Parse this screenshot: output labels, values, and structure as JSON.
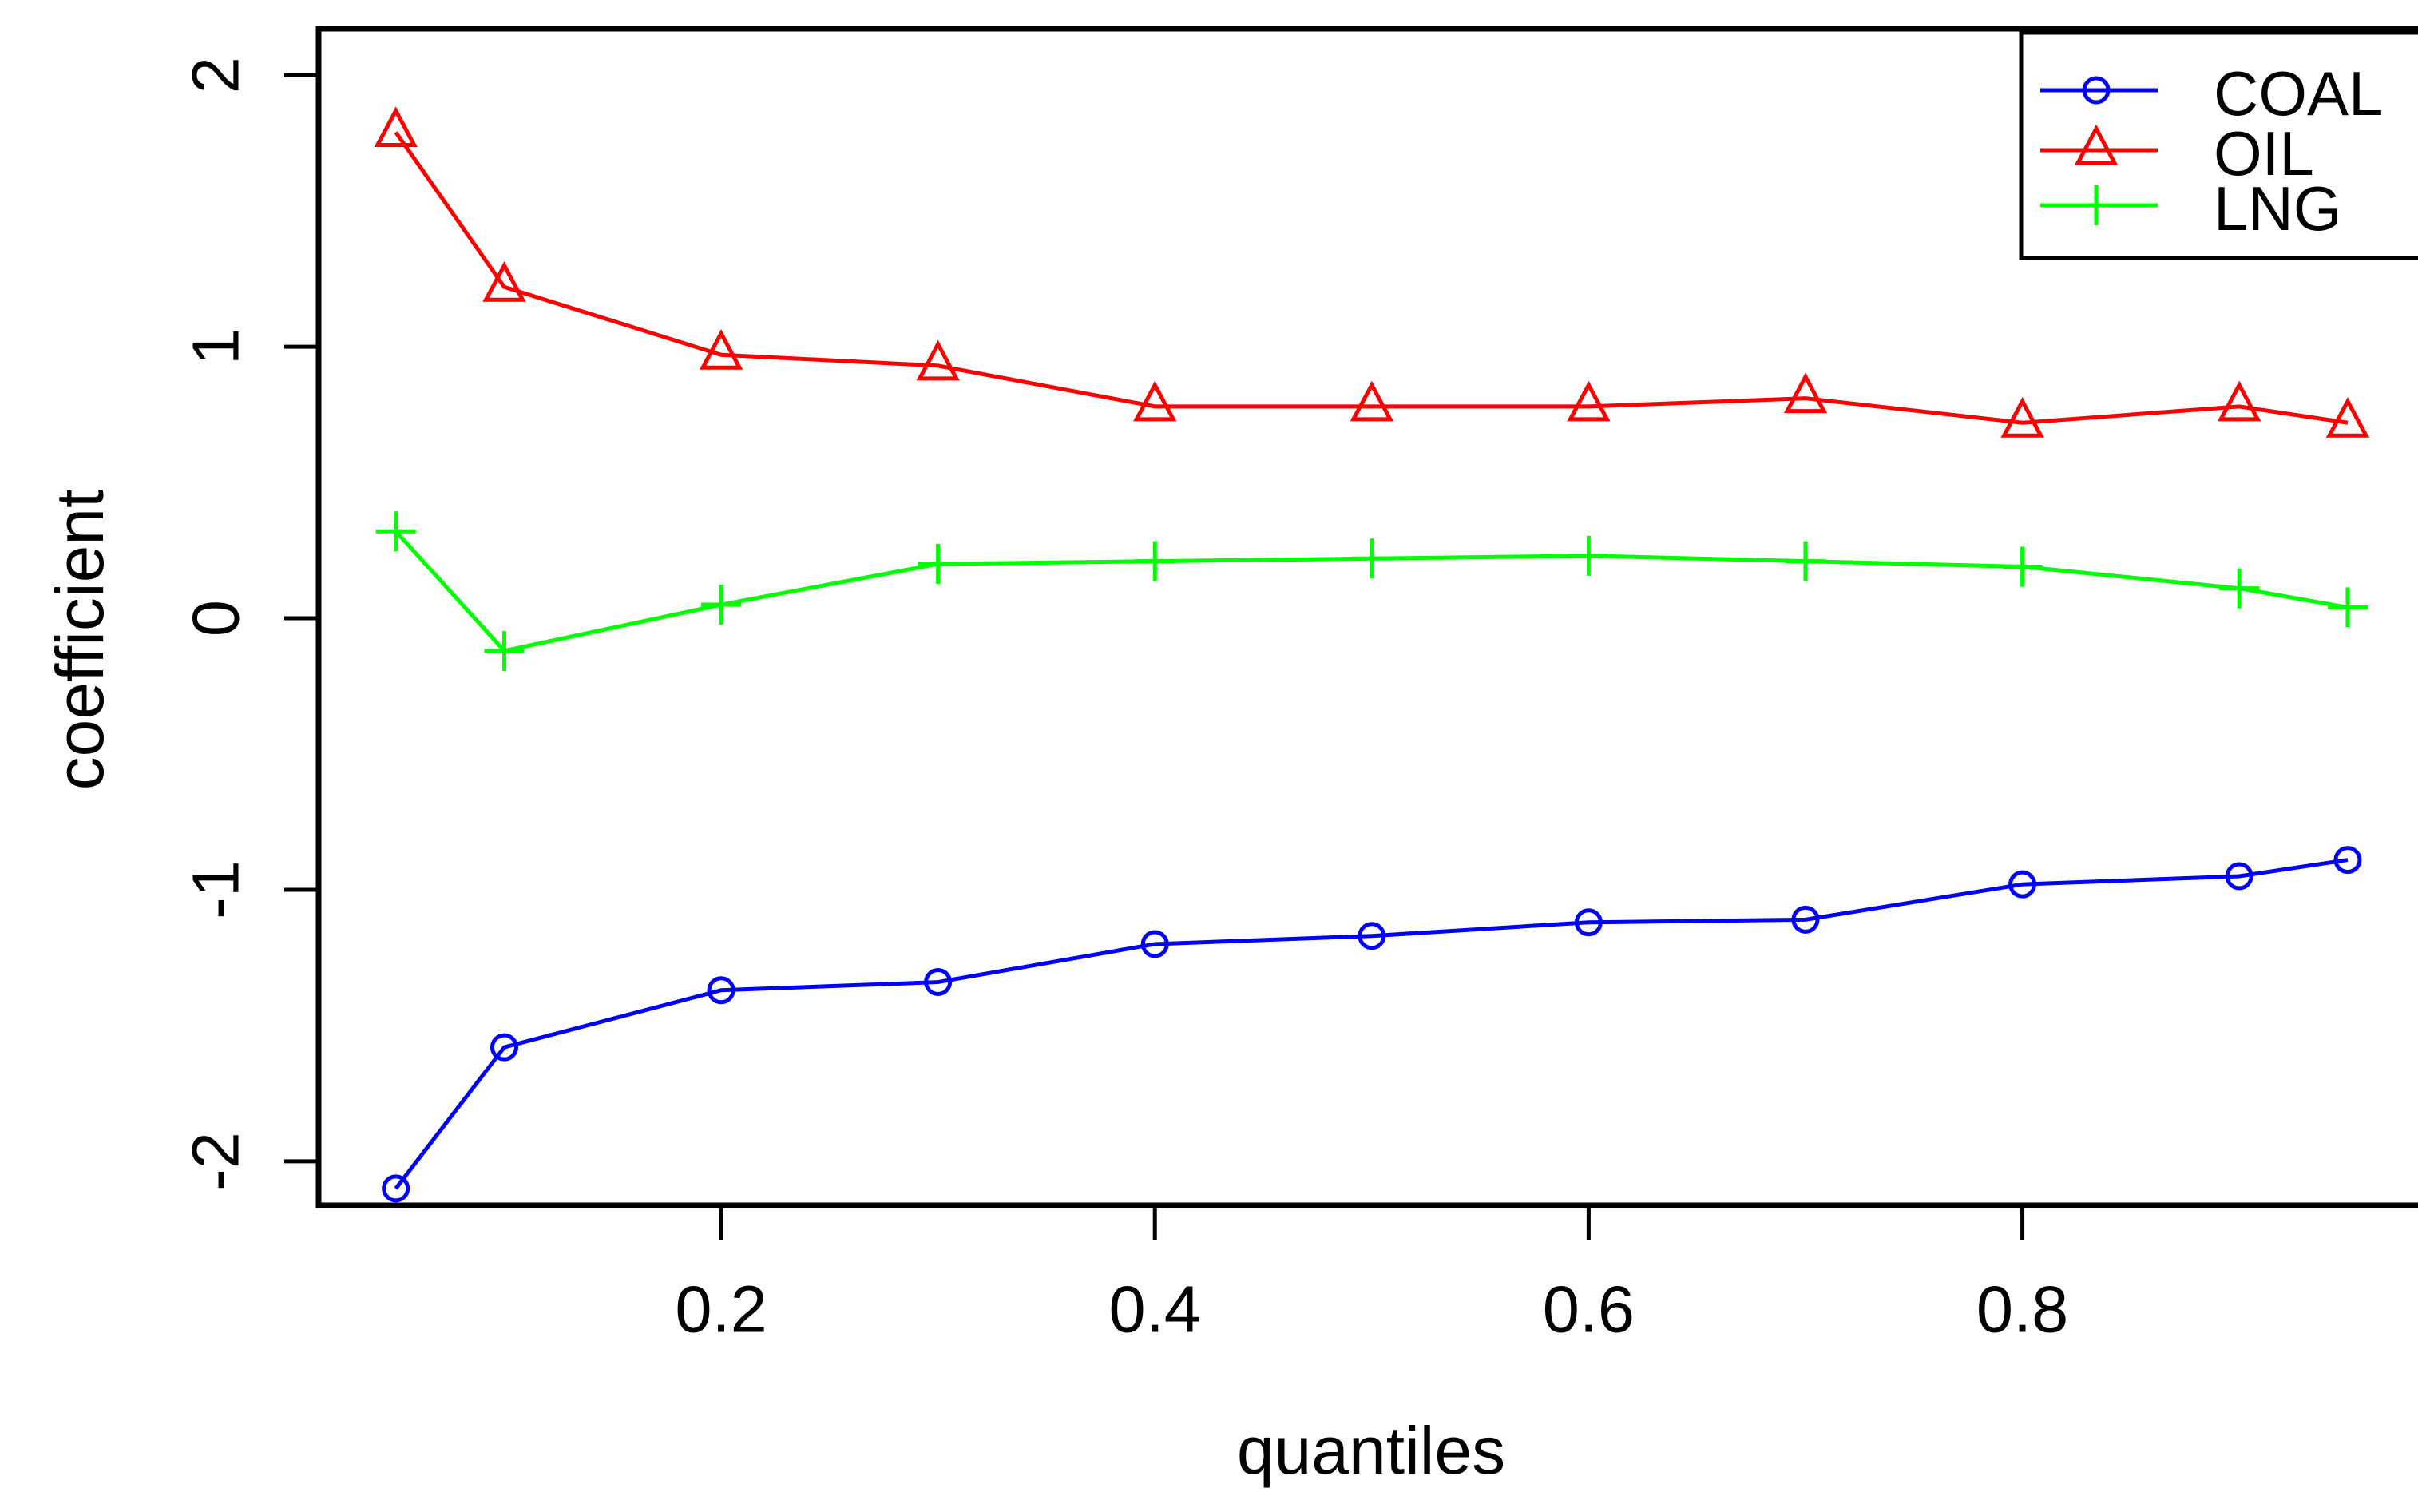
{
  "chart_data": {
    "type": "line",
    "title": "",
    "xlabel": "quantiles",
    "ylabel": "coefficient",
    "x": [
      0.05,
      0.1,
      0.2,
      0.3,
      0.4,
      0.5,
      0.6,
      0.7,
      0.8,
      0.9,
      0.95
    ],
    "series": [
      {
        "name": "COAL",
        "color": "#0000ff",
        "marker": "circle",
        "values": [
          -2.1,
          -1.58,
          -1.37,
          -1.34,
          -1.2,
          -1.17,
          -1.12,
          -1.11,
          -0.98,
          -0.95,
          -0.89
        ]
      },
      {
        "name": "OIL",
        "color": "#ff0000",
        "marker": "triangle",
        "values": [
          1.79,
          1.22,
          0.97,
          0.93,
          0.78,
          0.78,
          0.78,
          0.81,
          0.72,
          0.78,
          0.72
        ]
      },
      {
        "name": "LNG",
        "color": "#00ff00",
        "marker": "plus",
        "values": [
          0.32,
          -0.12,
          0.05,
          0.2,
          0.21,
          0.22,
          0.23,
          0.21,
          0.19,
          0.11,
          0.04
        ]
      }
    ],
    "x_ticks": [
      "0.2",
      "0.4",
      "0.6",
      "0.8"
    ],
    "y_ticks": [
      "2",
      "1",
      "0",
      "-1",
      "-2"
    ],
    "xlim": [
      0.0144,
      0.985
    ],
    "ylim": [
      -2.162,
      2.171
    ],
    "grid": false,
    "legend_position": "top-right",
    "axis_color": "#000000",
    "text_color": "#000000",
    "background": "#ffffff"
  }
}
